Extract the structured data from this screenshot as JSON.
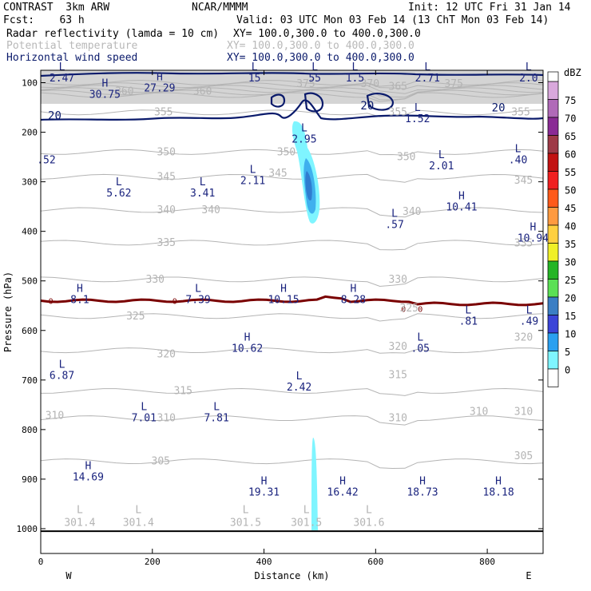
{
  "header": {
    "model": "CONTRAST  3km ARW",
    "org": "NCAR/MMMM",
    "init": "Init: 12 UTC Fri 31 Jan 14",
    "fcst": "Fcst:    63 h",
    "valid": "Valid: 03 UTC Mon 03 Feb 14 (13 ChT Mon 03 Feb 14)",
    "field1": "Radar reflectivity (lamda = 10 cm)",
    "field1_xy": "XY= 100.0,300.0 to 400.0,300.0",
    "field2": "Potential temperature",
    "field2_xy": "XY= 100.0,300.0 to 400.0,300.0",
    "field3": "Horizontal wind speed",
    "field3_xy": "XY= 100.0,300.0 to 400.0,300.0"
  },
  "colors": {
    "theta": "#b4b4b4",
    "wind": "#0a1a6b",
    "label": "#1a237e",
    "tropo_line": "#7a0000",
    "radar_light": "#7ff5ff",
    "radar_mid": "#3fb0ee",
    "radar_dark": "#2f7dd0"
  },
  "chart_data": {
    "type": "cross-section",
    "xlabel": "Distance (km)",
    "ylabel": "Pressure (hPa)",
    "xlim": [
      0,
      900
    ],
    "ylim": [
      1050,
      75
    ],
    "x_ticks": [
      "0",
      "200",
      "400",
      "600",
      "800"
    ],
    "x_tick_values": [
      0,
      200,
      400,
      600,
      800
    ],
    "y_ticks": [
      "100",
      "200",
      "300",
      "400",
      "500",
      "600",
      "700",
      "800",
      "900",
      "1000"
    ],
    "y_tick_values": [
      100,
      200,
      300,
      400,
      500,
      600,
      700,
      800,
      900,
      1000
    ],
    "west_label": "W",
    "east_label": "E",
    "colorbar": {
      "unit": "dBZ",
      "levels": [
        "75",
        "70",
        "65",
        "60",
        "55",
        "50",
        "45",
        "40",
        "35",
        "30",
        "25",
        "20",
        "15",
        "10",
        "5",
        "0"
      ],
      "colors": [
        "#d9a8dc",
        "#b06ab8",
        "#8a2b95",
        "#9e3a47",
        "#c21212",
        "#f01f1f",
        "#ff5a1a",
        "#ff9a40",
        "#ffd040",
        "#f0f028",
        "#25b525",
        "#5be055",
        "#3b7ec4",
        "#3b44d8",
        "#2aa0f0",
        "#7ff5ff",
        "#ffffff"
      ]
    },
    "theta_labels": [
      {
        "text": "360",
        "x": 150,
        "p": 118
      },
      {
        "text": "360",
        "x": 290,
        "p": 118
      },
      {
        "text": "375",
        "x": 475,
        "p": 102
      },
      {
        "text": "370",
        "x": 590,
        "p": 102
      },
      {
        "text": "375",
        "x": 740,
        "p": 102
      },
      {
        "text": "365",
        "x": 640,
        "p": 108
      },
      {
        "text": "355",
        "x": 220,
        "p": 160
      },
      {
        "text": "355",
        "x": 640,
        "p": 160
      },
      {
        "text": "355",
        "x": 860,
        "p": 160
      },
      {
        "text": "350",
        "x": 225,
        "p": 240
      },
      {
        "text": "350",
        "x": 440,
        "p": 240
      },
      {
        "text": "350",
        "x": 655,
        "p": 250
      },
      {
        "text": "345",
        "x": 225,
        "p": 290
      },
      {
        "text": "345",
        "x": 425,
        "p": 283
      },
      {
        "text": "345",
        "x": 865,
        "p": 297
      },
      {
        "text": "340",
        "x": 225,
        "p": 357
      },
      {
        "text": "340",
        "x": 305,
        "p": 357
      },
      {
        "text": "340",
        "x": 665,
        "p": 360
      },
      {
        "text": "335",
        "x": 225,
        "p": 423
      },
      {
        "text": "335",
        "x": 865,
        "p": 424
      },
      {
        "text": "330",
        "x": 205,
        "p": 497
      },
      {
        "text": "330",
        "x": 640,
        "p": 497
      },
      {
        "text": "325",
        "x": 170,
        "p": 571
      },
      {
        "text": "325",
        "x": 660,
        "p": 555
      },
      {
        "text": "320",
        "x": 225,
        "p": 648
      },
      {
        "text": "320",
        "x": 640,
        "p": 633
      },
      {
        "text": "320",
        "x": 865,
        "p": 614
      },
      {
        "text": "315",
        "x": 255,
        "p": 722
      },
      {
        "text": "315",
        "x": 640,
        "p": 690
      },
      {
        "text": "310",
        "x": 25,
        "p": 772
      },
      {
        "text": "310",
        "x": 225,
        "p": 777
      },
      {
        "text": "310",
        "x": 640,
        "p": 777
      },
      {
        "text": "310",
        "x": 785,
        "p": 764
      },
      {
        "text": "310",
        "x": 865,
        "p": 764
      },
      {
        "text": "305",
        "x": 215,
        "p": 864
      },
      {
        "text": "305",
        "x": 865,
        "p": 853
      }
    ],
    "wind_labels": [
      {
        "text": "20",
        "x": 25,
        "p": 166
      },
      {
        "text": "20",
        "x": 585,
        "p": 146
      },
      {
        "text": "20",
        "x": 820,
        "p": 150
      }
    ],
    "extrema": [
      {
        "type": "L",
        "value": "2.47",
        "x": 38,
        "p": 85
      },
      {
        "type": "H",
        "value": "30.75",
        "x": 115,
        "p": 118
      },
      {
        "type": "H",
        "value": "27.29",
        "x": 213,
        "p": 105
      },
      {
        "type": "L",
        "value": "15",
        "x": 383,
        "p": 85
      },
      {
        "type": "L",
        "value": "55",
        "x": 491,
        "p": 85
      },
      {
        "type": "L",
        "value": "1.5",
        "x": 563,
        "p": 85
      },
      {
        "type": "L",
        "value": "2.71",
        "x": 693,
        "p": 85
      },
      {
        "type": "L",
        "value": "2.0",
        "x": 874,
        "p": 85
      },
      {
        "type": "L",
        "value": "1.52",
        "x": 675,
        "p": 167
      },
      {
        "type": "L",
        "value": "2.95",
        "x": 472,
        "p": 208
      },
      {
        "type": "",
        "value": ".52",
        "x": 10,
        "p": 250
      },
      {
        "type": "L",
        "value": "2.01",
        "x": 718,
        "p": 262
      },
      {
        "type": "L",
        "value": ".40",
        "x": 855,
        "p": 250
      },
      {
        "type": "L",
        "value": "2.11",
        "x": 380,
        "p": 292
      },
      {
        "type": "L",
        "value": "5.62",
        "x": 140,
        "p": 317
      },
      {
        "type": "L",
        "value": "3.41",
        "x": 290,
        "p": 317
      },
      {
        "type": "H",
        "value": "10.41",
        "x": 754,
        "p": 345
      },
      {
        "type": "L",
        "value": ".57",
        "x": 634,
        "p": 380
      },
      {
        "type": "H",
        "value": "10.94",
        "x": 882,
        "p": 408
      },
      {
        "type": "H",
        "value": "8.1",
        "x": 70,
        "p": 532
      },
      {
        "type": "L",
        "value": "7.39",
        "x": 282,
        "p": 532
      },
      {
        "type": "H",
        "value": "10.15",
        "x": 435,
        "p": 532
      },
      {
        "type": "H",
        "value": "8.28",
        "x": 560,
        "p": 532
      },
      {
        "type": "L",
        "value": ".81",
        "x": 766,
        "p": 575
      },
      {
        "type": "L",
        "value": ".49",
        "x": 875,
        "p": 575
      },
      {
        "type": "H",
        "value": "10.62",
        "x": 370,
        "p": 630
      },
      {
        "type": "L",
        "value": ".05",
        "x": 680,
        "p": 630
      },
      {
        "type": "L",
        "value": "6.87",
        "x": 38,
        "p": 685
      },
      {
        "type": "L",
        "value": "2.42",
        "x": 463,
        "p": 708
      },
      {
        "type": "L",
        "value": "7.01",
        "x": 185,
        "p": 770
      },
      {
        "type": "L",
        "value": "7.81",
        "x": 315,
        "p": 770
      },
      {
        "type": "H",
        "value": "14.69",
        "x": 85,
        "p": 890
      },
      {
        "type": "H",
        "value": "19.31",
        "x": 400,
        "p": 920
      },
      {
        "type": "H",
        "value": "16.42",
        "x": 541,
        "p": 920
      },
      {
        "type": "H",
        "value": "18.73",
        "x": 684,
        "p": 920
      },
      {
        "type": "H",
        "value": "18.18",
        "x": 820,
        "p": 920
      }
    ],
    "surface_lows": [
      {
        "type": "L",
        "value": "301.4",
        "x": 70,
        "p": 985
      },
      {
        "type": "L",
        "value": "301.4",
        "x": 175,
        "p": 985
      },
      {
        "type": "L",
        "value": "301.5",
        "x": 367,
        "p": 985
      },
      {
        "type": "L",
        "value": "301.5",
        "x": 476,
        "p": 985
      },
      {
        "type": "L",
        "value": "301.6",
        "x": 588,
        "p": 985
      }
    ],
    "zero_labels": [
      {
        "text": "0",
        "x": 18,
        "p": 540
      },
      {
        "text": "0",
        "x": 240,
        "p": 540
      },
      {
        "text": "0",
        "x": 650,
        "p": 556
      },
      {
        "text": "0",
        "x": 680,
        "p": 556
      }
    ]
  }
}
